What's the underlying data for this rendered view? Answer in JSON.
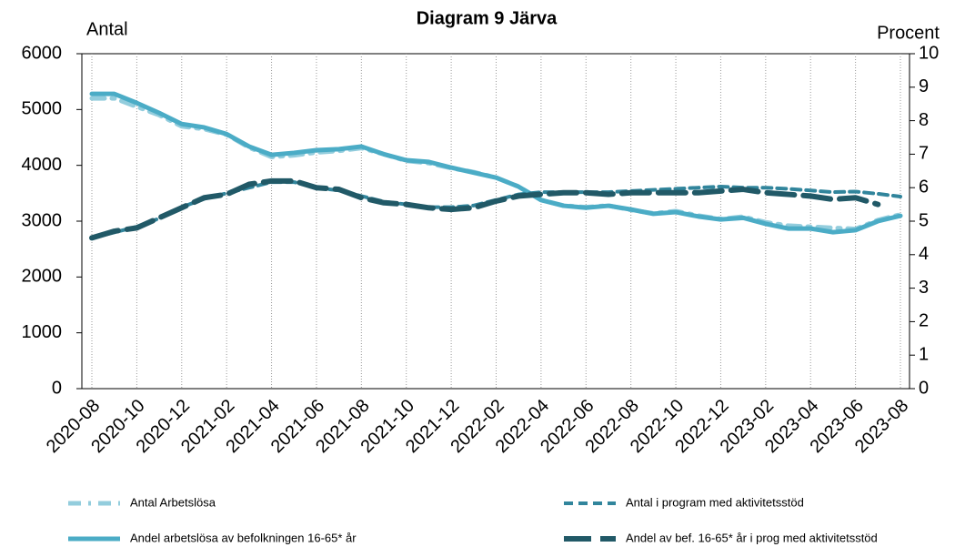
{
  "chart_data": {
    "type": "line",
    "title": "Diagram 9 Järva",
    "y_label": "Antal",
    "y2_label": "Procent",
    "categories": [
      "2020-08",
      null,
      "2020-10",
      null,
      "2020-12",
      null,
      "2021-02",
      null,
      "2021-04",
      null,
      "2021-06",
      null,
      "2021-08",
      null,
      "2021-10",
      null,
      "2021-12",
      null,
      "2022-02",
      null,
      "2022-04",
      null,
      "2022-06",
      null,
      "2022-08",
      null,
      "2022-10",
      null,
      "2022-12",
      null,
      "2023-02",
      null,
      "2023-04",
      null,
      "2023-06",
      null,
      "2023-08"
    ],
    "ylim": [
      0,
      6000
    ],
    "yticks": [
      0,
      1000,
      2000,
      3000,
      4000,
      5000,
      6000
    ],
    "y2lim": [
      0,
      10
    ],
    "y2ticks": [
      0,
      1,
      2,
      3,
      4,
      5,
      6,
      7,
      8,
      9,
      10
    ],
    "grid": true,
    "series": [
      {
        "name": "Antal Arbetslösa",
        "color": "#93cddd",
        "values": [
          5200,
          5200,
          5050,
          4900,
          4700,
          4650,
          4550,
          4320,
          4150,
          4180,
          4230,
          4260,
          4310,
          4200,
          4080,
          4040,
          3950,
          3880,
          3780,
          3620,
          3380,
          3280,
          3250,
          3280,
          3200,
          3140,
          3180,
          3100,
          3040,
          3080,
          2980,
          2920,
          2900,
          2880,
          2860,
          3020,
          3120
        ]
      },
      {
        "name": "Andel arbetslösa av befolkningen 16-65* år",
        "color": "#4bacc6",
        "axis": "y2",
        "values": [
          8.8,
          8.8,
          8.53,
          8.23,
          7.9,
          7.8,
          7.6,
          7.23,
          6.98,
          7.04,
          7.12,
          7.15,
          7.23,
          7.0,
          6.82,
          6.77,
          6.6,
          6.45,
          6.3,
          6.03,
          5.63,
          5.46,
          5.4,
          5.46,
          5.35,
          5.22,
          5.27,
          5.14,
          5.05,
          5.1,
          4.92,
          4.78,
          4.78,
          4.67,
          4.73,
          5.0,
          5.16
        ]
      },
      {
        "name": "Antal i program med aktivitetsstöd",
        "color": "#31859c",
        "values": [
          2700,
          2800,
          2900,
          3050,
          3250,
          3400,
          3500,
          3600,
          3700,
          3700,
          3600,
          3550,
          3450,
          3350,
          3300,
          3250,
          3250,
          3280,
          3380,
          3480,
          3520,
          3520,
          3520,
          3520,
          3540,
          3560,
          3580,
          3600,
          3620,
          3600,
          3600,
          3580,
          3550,
          3520,
          3530,
          3490,
          3440
        ]
      },
      {
        "name": "Andel av bef. 16-65* år i prog med aktivitetsstöd",
        "color": "#215967",
        "axis": "y2",
        "values": [
          4.5,
          4.7,
          4.8,
          5.1,
          5.4,
          5.7,
          5.8,
          6.1,
          6.2,
          6.2,
          6.0,
          5.95,
          5.7,
          5.55,
          5.5,
          5.4,
          5.35,
          5.4,
          5.6,
          5.75,
          5.8,
          5.85,
          5.85,
          5.8,
          5.85,
          5.85,
          5.85,
          5.85,
          5.9,
          5.95,
          5.85,
          5.8,
          5.75,
          5.65,
          5.7,
          5.5,
          null
        ]
      }
    ]
  }
}
